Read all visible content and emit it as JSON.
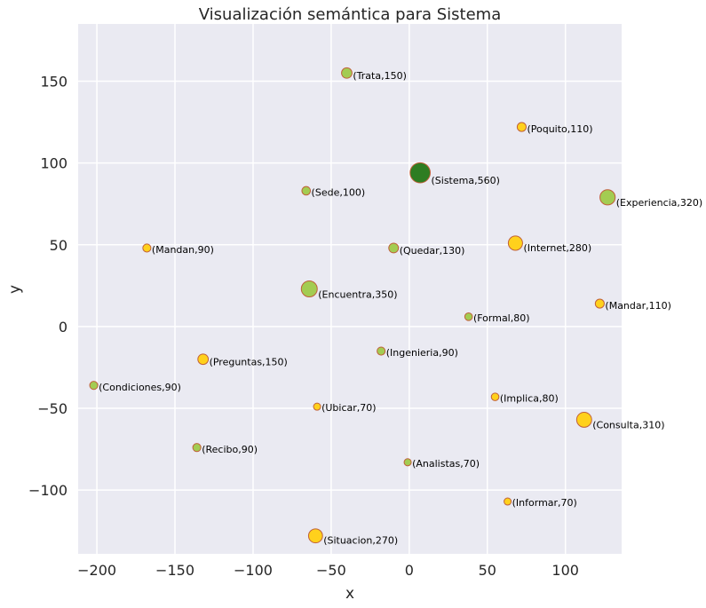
{
  "chart_data": {
    "type": "scatter",
    "title": "Visualización semántica para Sistema",
    "xlabel": "x",
    "ylabel": "y",
    "xlim": [
      -212,
      136
    ],
    "ylim": [
      -139,
      185
    ],
    "xticks": [
      -200,
      -150,
      -100,
      -50,
      0,
      50,
      100
    ],
    "yticks": [
      -100,
      -50,
      0,
      50,
      100,
      150
    ],
    "xtick_labels": [
      "−200",
      "−150",
      "−100",
      "−50",
      "0",
      "50",
      "100"
    ],
    "ytick_labels": [
      "−100",
      "−50",
      "0",
      "50",
      "100",
      "150"
    ],
    "grid": true,
    "colors": {
      "background": "#eaeaf2",
      "grid": "#ffffff",
      "gold": "#ffd11c",
      "lime": "#a3cc52",
      "green": "#2e7d22",
      "edge": "#c0603a"
    },
    "points": [
      {
        "label": "(Sistema,560)",
        "x": 7,
        "y": 94,
        "size": 560,
        "color": "green"
      },
      {
        "label": "(Trata,150)",
        "x": -40,
        "y": 155,
        "size": 150,
        "color": "lime"
      },
      {
        "label": "(Poquito,110)",
        "x": 72,
        "y": 122,
        "size": 110,
        "color": "gold"
      },
      {
        "label": "(Sede,100)",
        "x": -66,
        "y": 83,
        "size": 100,
        "color": "lime"
      },
      {
        "label": "(Experiencia,320)",
        "x": 127,
        "y": 79,
        "size": 320,
        "color": "lime"
      },
      {
        "label": "(Mandan,90)",
        "x": -168,
        "y": 48,
        "size": 90,
        "color": "gold"
      },
      {
        "label": "(Quedar,130)",
        "x": -10,
        "y": 48,
        "size": 130,
        "color": "lime"
      },
      {
        "label": "(Internet,280)",
        "x": 68,
        "y": 51,
        "size": 280,
        "color": "gold"
      },
      {
        "label": "(Encuentra,350)",
        "x": -64,
        "y": 23,
        "size": 350,
        "color": "lime"
      },
      {
        "label": "(Formal,80)",
        "x": 38,
        "y": 6,
        "size": 80,
        "color": "lime"
      },
      {
        "label": "(Mandar,110)",
        "x": 122,
        "y": 14,
        "size": 110,
        "color": "gold"
      },
      {
        "label": "(Ingenieria,90)",
        "x": -18,
        "y": -15,
        "size": 90,
        "color": "lime"
      },
      {
        "label": "(Preguntas,150)",
        "x": -132,
        "y": -20,
        "size": 150,
        "color": "gold"
      },
      {
        "label": "(Condiciones,90)",
        "x": -202,
        "y": -36,
        "size": 90,
        "color": "lime"
      },
      {
        "label": "(Implica,80)",
        "x": 55,
        "y": -43,
        "size": 80,
        "color": "gold"
      },
      {
        "label": "(Ubicar,70)",
        "x": -59,
        "y": -49,
        "size": 70,
        "color": "gold"
      },
      {
        "label": "(Consulta,310)",
        "x": 112,
        "y": -57,
        "size": 310,
        "color": "gold"
      },
      {
        "label": "(Recibo,90)",
        "x": -136,
        "y": -74,
        "size": 90,
        "color": "lime"
      },
      {
        "label": "(Analistas,70)",
        "x": -1,
        "y": -83,
        "size": 70,
        "color": "lime"
      },
      {
        "label": "(Informar,70)",
        "x": 63,
        "y": -107,
        "size": 70,
        "color": "gold"
      },
      {
        "label": "(Situacion,270)",
        "x": -60,
        "y": -128,
        "size": 270,
        "color": "gold"
      }
    ]
  }
}
